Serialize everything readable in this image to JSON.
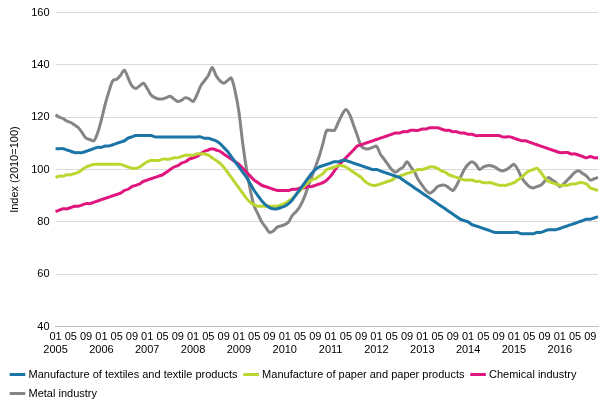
{
  "chart_data": {
    "type": "line",
    "y_label": "Index (2010=100)",
    "categories": [
      "01\n2005",
      null,
      null,
      null,
      "05",
      null,
      null,
      null,
      "09",
      null,
      null,
      null,
      "01\n2006",
      null,
      null,
      null,
      "05",
      null,
      null,
      null,
      "09",
      null,
      null,
      null,
      "01\n2007",
      null,
      null,
      null,
      "05",
      null,
      null,
      null,
      "09",
      null,
      null,
      null,
      "01\n2008",
      null,
      null,
      null,
      "05",
      null,
      null,
      null,
      "09",
      null,
      null,
      null,
      "01\n2009",
      null,
      null,
      null,
      "05",
      null,
      null,
      null,
      "09",
      null,
      null,
      null,
      "01\n2010",
      null,
      null,
      null,
      "05",
      null,
      null,
      null,
      "09",
      null,
      null,
      null,
      "01\n2011",
      null,
      null,
      null,
      "05",
      null,
      null,
      null,
      "09",
      null,
      null,
      null,
      "01\n2012",
      null,
      null,
      null,
      "05",
      null,
      null,
      null,
      "09",
      null,
      null,
      null,
      "01\n2013",
      null,
      null,
      null,
      "05",
      null,
      null,
      null,
      "09",
      null,
      null,
      null,
      "01\n2014",
      null,
      null,
      null,
      "05",
      null,
      null,
      null,
      "09",
      null,
      null,
      null,
      "01\n2015",
      null,
      null,
      null,
      "05",
      null,
      null,
      null,
      "09",
      null,
      null,
      null,
      "01\n2016",
      null,
      null,
      null,
      "05",
      null,
      null,
      null,
      "09",
      null,
      null
    ],
    "series": [
      {
        "name": "Manufacture of textiles and textile products",
        "color": "#1b74a6",
        "values": [
          108,
          108,
          108,
          107.5,
          107,
          106.5,
          106.5,
          106.5,
          107,
          107.5,
          108,
          108.5,
          108.5,
          109,
          109,
          109.5,
          110,
          110.5,
          111,
          112,
          112.5,
          113,
          113,
          113,
          113,
          113,
          112.5,
          112.5,
          112.5,
          112.5,
          112.5,
          112.5,
          112.5,
          112.5,
          112.5,
          112.5,
          112.5,
          112.5,
          112.5,
          112,
          112,
          111.5,
          111,
          110,
          108.5,
          107,
          105,
          103,
          101,
          99,
          97,
          94.5,
          92,
          90,
          88,
          86.5,
          85.5,
          85,
          85,
          85.5,
          86,
          87,
          88.5,
          90.5,
          92.5,
          94.5,
          96.5,
          98.5,
          100,
          101,
          101.5,
          102,
          102.5,
          103,
          103,
          103.5,
          103.5,
          103,
          102.5,
          102,
          101.5,
          101,
          100.5,
          100,
          100,
          99.5,
          99,
          98.5,
          98,
          97.5,
          97,
          96,
          95,
          94,
          93,
          92,
          91,
          90,
          89,
          88,
          87,
          86,
          85,
          84,
          83,
          82,
          81,
          80.5,
          80,
          79,
          78.5,
          78,
          77.5,
          77,
          76.5,
          76,
          76,
          76,
          76,
          76,
          76,
          76,
          75.5,
          75.5,
          75.5,
          75.5,
          76,
          76,
          76.5,
          77,
          77,
          77,
          77.5,
          78,
          78.5,
          79,
          79.5,
          80,
          80.5,
          81,
          81,
          81.5,
          82
        ]
      },
      {
        "name": "Manufacture of paper and paper products",
        "color": "#bcd631",
        "values": [
          97,
          97.5,
          97.5,
          98,
          98,
          98.5,
          99,
          100,
          101,
          101.5,
          102,
          102,
          102,
          102,
          102,
          102,
          102,
          102,
          101.5,
          101,
          100.5,
          100.5,
          101,
          102,
          103,
          103.5,
          103.5,
          103.5,
          104,
          104,
          104,
          104.5,
          104.5,
          105,
          105.5,
          105.5,
          105.5,
          106,
          106,
          106,
          105.5,
          104.5,
          103.5,
          102.5,
          101,
          99,
          97,
          95,
          93,
          91,
          89,
          87.5,
          86.5,
          86,
          86,
          86,
          86,
          86,
          86,
          86.5,
          87,
          88,
          89,
          90.5,
          92,
          93.5,
          95,
          96,
          96.5,
          97.5,
          98.5,
          100,
          100.5,
          101,
          101.5,
          101.5,
          101,
          100,
          99,
          98,
          97,
          95.5,
          94.5,
          94,
          94,
          94.5,
          95,
          95.5,
          96,
          97,
          97.5,
          98,
          98.5,
          99,
          99.5,
          100,
          100,
          100.5,
          101,
          101,
          100.5,
          99.5,
          99,
          98,
          97.5,
          97,
          96.5,
          96,
          96,
          96,
          95.5,
          95.5,
          95,
          95,
          95,
          94.5,
          94,
          94,
          94,
          94.5,
          95,
          96,
          97,
          98.5,
          99.5,
          100,
          100.5,
          99,
          97,
          95.5,
          95,
          94.5,
          94,
          94,
          94,
          94.5,
          94.5,
          95,
          95,
          94.5,
          93,
          92.5,
          92
        ]
      },
      {
        "name": "Chemical industry",
        "color": "#e0157e",
        "values": [
          84,
          84.5,
          85,
          85,
          85.5,
          86,
          86,
          86.5,
          87,
          87,
          87.5,
          88,
          88.5,
          89,
          89.5,
          90,
          90.5,
          91,
          92,
          92.5,
          93.5,
          94,
          94.5,
          95.5,
          96,
          96.5,
          97,
          97.5,
          98,
          99,
          100,
          101,
          101.5,
          102.5,
          103,
          104,
          104.5,
          105,
          106,
          107,
          107.5,
          108,
          107.5,
          107,
          106,
          105,
          104,
          103,
          102,
          100.5,
          99,
          97.5,
          96,
          95,
          94,
          93.5,
          93,
          92.5,
          92,
          92,
          92,
          92,
          92.5,
          92.5,
          93,
          93,
          93.5,
          93.5,
          94,
          94.5,
          95,
          96,
          97.5,
          99.5,
          101.5,
          103,
          104.5,
          106,
          107.5,
          109,
          109.5,
          110,
          110.5,
          111,
          111.5,
          112,
          112.5,
          113,
          113.5,
          114,
          114,
          114.5,
          114.5,
          115,
          115,
          115,
          115.5,
          115.5,
          116,
          116,
          116,
          115.5,
          115,
          115,
          114.5,
          114.5,
          114,
          114,
          113.5,
          113.5,
          113,
          113,
          113,
          113,
          113,
          113,
          113,
          112.5,
          112.5,
          112.5,
          112,
          111.5,
          111,
          111,
          110.5,
          110,
          109.5,
          109,
          108.5,
          108,
          107.5,
          107,
          106.5,
          106.5,
          106.5,
          106,
          106,
          105.5,
          105,
          104.5,
          105,
          104.5,
          104.5
        ]
      },
      {
        "name": "Metal industry",
        "color": "#858585",
        "values": [
          121,
          120,
          119.5,
          118.5,
          118,
          117,
          116,
          114,
          112,
          111.5,
          111,
          114,
          119,
          125,
          130,
          134,
          134.5,
          136,
          138,
          135,
          132,
          131,
          132,
          133,
          131,
          128.5,
          127.5,
          127,
          127,
          127.5,
          128,
          127,
          126,
          126.5,
          127.5,
          127,
          126,
          128.5,
          132,
          134,
          136,
          139,
          136,
          134,
          133,
          134,
          135,
          130,
          122,
          110,
          100,
          92,
          86,
          83,
          80,
          78,
          76,
          76.5,
          78,
          78.5,
          79,
          80,
          82.5,
          84,
          86,
          89,
          93,
          97,
          101,
          105,
          110,
          115,
          115,
          115,
          118,
          121,
          123,
          121,
          117,
          113,
          109,
          108,
          108,
          108.5,
          109,
          106,
          104,
          102,
          100,
          99,
          100,
          101,
          103,
          101,
          99,
          96,
          94,
          92,
          91,
          92,
          93.5,
          94,
          94,
          93,
          92,
          94,
          97,
          100,
          102,
          103,
          102,
          100,
          101,
          101.5,
          101.5,
          101,
          100,
          99.5,
          100,
          101,
          102,
          100,
          97,
          95,
          93.5,
          93,
          93.5,
          94,
          95.5,
          97,
          96,
          95,
          93.5,
          94.5,
          96,
          97.5,
          99,
          99.5,
          98.5,
          97.5,
          96,
          96.5,
          97
        ]
      }
    ],
    "ylim": [
      40,
      160
    ],
    "yticks": [
      40,
      60,
      80,
      100,
      120,
      140,
      160
    ],
    "grid": true,
    "legend": "bottom"
  }
}
